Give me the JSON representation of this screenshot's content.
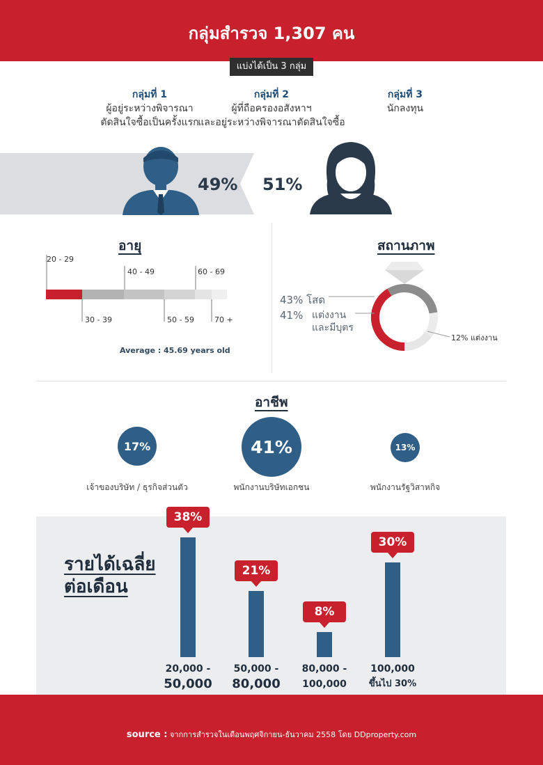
{
  "header": {
    "title": "กลุ่มสำรวจ 1,307 คน",
    "badge": "แบ่งได้เป็น 3 กลุ่ม"
  },
  "groups": [
    {
      "name": "กลุ่มที่ 1",
      "line1": "ผู้อยู่ระหว่างพิจารณา",
      "line2": "ตัดสินใจซื้อเป็นครั้งแรก"
    },
    {
      "name": "กลุ่มที่ 2",
      "line1": "ผู้ที่ถือครองอสังหาฯ",
      "line2": "และอยู่ระหว่างพิจารณาตัดสินใจซื้อ"
    },
    {
      "name": "กลุ่มที่ 3",
      "line1": "นักลงทุน",
      "line2": ""
    }
  ],
  "gender": {
    "male": "49%",
    "female": "51%",
    "male_value": 49,
    "female_value": 51
  },
  "age": {
    "title": "อายุ",
    "top_labels": [
      "20 - 29",
      "40 - 49",
      "60 - 69"
    ],
    "bottom_labels": [
      "30 - 39",
      "50 - 59",
      "70 +"
    ],
    "average": "Average : 45.69 years old"
  },
  "status": {
    "title": "สถานภาพ",
    "single_pct": "43%",
    "single_label": "โสด",
    "married_kids_pct": "41%",
    "married_kids_label1": "แต่งงาน",
    "married_kids_label2": "และมีบุตร",
    "married": "12% แต่งงาน"
  },
  "occupation": {
    "title": "อาชีพ",
    "items": [
      {
        "pct": "17%",
        "label": "เจ้าของบริษัท / ธุรกิจส่วนตัว"
      },
      {
        "pct": "41%",
        "label": "พนักงานบริษัทเอกชน"
      },
      {
        "pct": "13%",
        "label": "พนักงานรัฐวิสาหกิจ"
      }
    ]
  },
  "income": {
    "title_line1": "รายได้เฉลี่ย",
    "title_line2": "ต่อเดือน"
  },
  "chart_data": {
    "type": "bar",
    "categories": [
      "20,000 - 50,000",
      "50,000 - 80,000",
      "80,000 - 100,000",
      "100,000 ขึ้นไป 30%"
    ],
    "values": [
      38,
      21,
      8,
      30
    ],
    "value_labels": [
      "38%",
      "21%",
      "8%",
      "30%"
    ],
    "label_line1": [
      "20,000 -",
      "50,000 -",
      "80,000 -",
      "100,000"
    ],
    "label_line2": [
      "50,000",
      "80,000",
      "100,000",
      "ขึ้นไป 30%"
    ],
    "title": "รายได้เฉลี่ย ต่อเดือน",
    "ylim": [
      0,
      38
    ],
    "grid": false,
    "colors": {
      "bar": "#2f5f86",
      "label": "#c8202c"
    }
  },
  "footer": {
    "source_label": "source :",
    "source_text": "จากการสำรวจในเดือนพฤศจิกายน-ธันวาคม 2558 โดย DDproperty.com"
  },
  "colors": {
    "brand_red": "#c8202c",
    "navy": "#2f5f86",
    "dark": "#2b3a4a",
    "gray_band": "#dcdde0"
  }
}
